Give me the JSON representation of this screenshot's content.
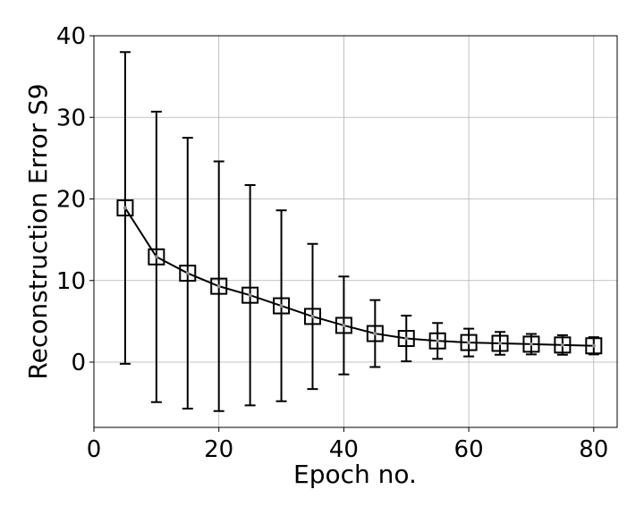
{
  "chart_data": {
    "type": "line",
    "xlabel": "Epoch no.",
    "ylabel": "Reconstruction Error S9",
    "x": [
      5,
      10,
      15,
      20,
      25,
      30,
      35,
      40,
      45,
      50,
      55,
      60,
      65,
      70,
      75,
      80
    ],
    "values": [
      18.9,
      12.9,
      10.9,
      9.3,
      8.2,
      6.9,
      5.6,
      4.5,
      3.5,
      2.9,
      2.6,
      2.4,
      2.3,
      2.2,
      2.1,
      2.0
    ],
    "errors": [
      19.1,
      17.8,
      16.6,
      15.3,
      13.5,
      11.7,
      8.9,
      6.0,
      4.1,
      2.8,
      2.2,
      1.7,
      1.4,
      1.25,
      1.2,
      1.05
    ],
    "color": "#000000",
    "marker": "square",
    "grid": true,
    "xlim": [
      0,
      83.75
    ],
    "xticks": [
      0,
      20,
      40,
      60,
      80
    ],
    "ylim": [
      -8,
      40
    ],
    "yticks": [
      0,
      10,
      20,
      30,
      40
    ]
  }
}
